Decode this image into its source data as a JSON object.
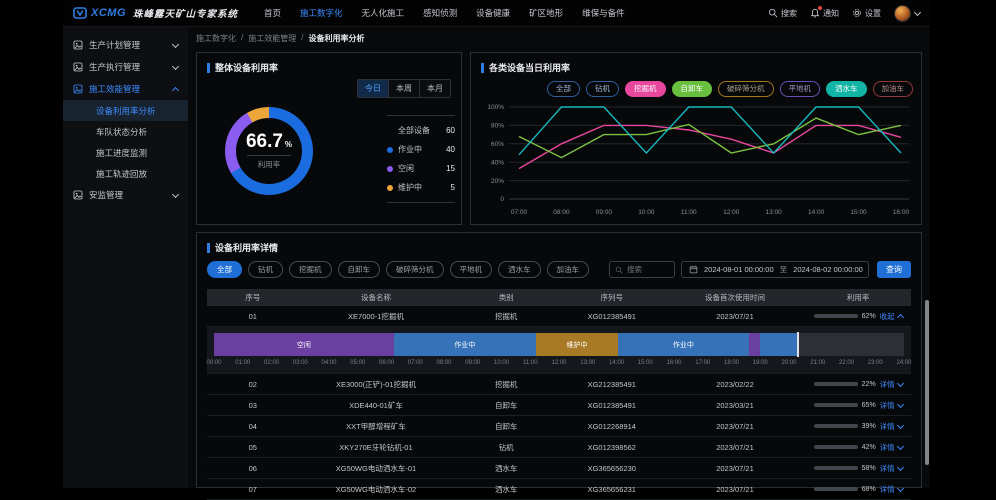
{
  "navbar": {
    "brand": "XCMG",
    "title": "珠峰露天矿山专家系统",
    "menu": [
      {
        "label": "首页",
        "active": false
      },
      {
        "label": "施工数字化",
        "active": true
      },
      {
        "label": "无人化施工",
        "active": false
      },
      {
        "label": "感知侦测",
        "active": false
      },
      {
        "label": "设备健康",
        "active": false
      },
      {
        "label": "矿区地形",
        "active": false
      },
      {
        "label": "维保与备件",
        "active": false
      }
    ],
    "actions": [
      {
        "name": "search",
        "label": "搜索",
        "badge": false
      },
      {
        "name": "notifications",
        "label": "通知",
        "badge": true
      },
      {
        "name": "settings",
        "label": "设置",
        "badge": false
      }
    ]
  },
  "sidebar": {
    "items": [
      {
        "label": "生产计划管理",
        "expanded": false,
        "active": false,
        "children": []
      },
      {
        "label": "生产执行管理",
        "expanded": false,
        "active": false,
        "children": []
      },
      {
        "label": "施工效能管理",
        "expanded": true,
        "active": true,
        "children": [
          {
            "label": "设备利用率分析",
            "active": true
          },
          {
            "label": "车队状态分析",
            "active": false
          },
          {
            "label": "施工进度监测",
            "active": false
          },
          {
            "label": "施工轨迹回放",
            "active": false
          }
        ]
      },
      {
        "label": "安监管理",
        "expanded": false,
        "active": false,
        "children": []
      }
    ]
  },
  "breadcrumb": [
    "施工数字化",
    "施工效能管理",
    "设备利用率分析"
  ],
  "overall": {
    "title": "整体设备利用率",
    "tabs": [
      {
        "label": "今日",
        "active": true
      },
      {
        "label": "本周",
        "active": false
      },
      {
        "label": "本月",
        "active": false
      }
    ],
    "center": {
      "value": "66.7",
      "unit": "%",
      "label": "利用率"
    },
    "chart_data": {
      "type": "pie",
      "title": "整体设备利用率",
      "total_label": "全部设备",
      "total": 60,
      "slices": [
        {
          "label": "作业中",
          "value": 40,
          "color": "#1b6ce0"
        },
        {
          "label": "空闲",
          "value": 15,
          "color": "#8a5cf0"
        },
        {
          "label": "维护中",
          "value": 5,
          "color": "#eda63a"
        }
      ]
    }
  },
  "daily": {
    "title": "各类设备当日利用率",
    "tags": [
      {
        "label": "全部",
        "fill": false,
        "color": "#2f5d9e",
        "text": "#9fb6d4"
      },
      {
        "label": "钻机",
        "fill": false,
        "color": "#2f5d9e",
        "text": "#9fb6d4"
      },
      {
        "label": "挖掘机",
        "fill": true,
        "color": "#e8479e",
        "text": "#ffffff"
      },
      {
        "label": "自卸车",
        "fill": true,
        "color": "#67bf3d",
        "text": "#ffffff"
      },
      {
        "label": "破碎筛分机",
        "fill": false,
        "color": "#a5791f",
        "text": "#a9a089"
      },
      {
        "label": "平地机",
        "fill": false,
        "color": "#6b4fb8",
        "text": "#a195c4"
      },
      {
        "label": "洒水车",
        "fill": true,
        "color": "#12b5a5",
        "text": "#ffffff"
      },
      {
        "label": "加油车",
        "fill": false,
        "color": "#8f3a3a",
        "text": "#bf9090"
      }
    ],
    "chart_data": {
      "type": "line",
      "title": "各类设备当日利用率",
      "x": [
        "07:00",
        "08:00",
        "09:00",
        "10:00",
        "11:00",
        "12:00",
        "13:00",
        "14:00",
        "15:00",
        "16:00"
      ],
      "ylim": [
        0,
        100
      ],
      "yticks": [
        {
          "value": 0,
          "label": "0"
        },
        {
          "value": 20,
          "label": "20%"
        },
        {
          "value": 40,
          "label": "40%"
        },
        {
          "value": 60,
          "label": "60%"
        },
        {
          "value": 80,
          "label": "80%"
        },
        {
          "value": 100,
          "label": "100%"
        }
      ],
      "grid": true,
      "legend_position": "top-right",
      "series": [
        {
          "name": "挖掘机",
          "color": "#e8479e",
          "values": [
            33,
            60,
            80,
            80,
            75,
            65,
            50,
            80,
            80,
            67
          ]
        },
        {
          "name": "自卸车",
          "color": "#7cc342",
          "values": [
            68,
            45,
            70,
            70,
            81,
            50,
            60,
            88,
            70,
            80
          ]
        },
        {
          "name": "洒水车",
          "color": "#17b8be",
          "values": [
            48,
            100,
            100,
            50,
            100,
            100,
            50,
            100,
            100,
            50
          ]
        }
      ]
    }
  },
  "details": {
    "title": "设备利用率详情",
    "filters": [
      {
        "label": "全部",
        "active": true
      },
      {
        "label": "钻机",
        "active": false
      },
      {
        "label": "挖掘机",
        "active": false
      },
      {
        "label": "自卸车",
        "active": false
      },
      {
        "label": "破碎筛分机",
        "active": false
      },
      {
        "label": "平地机",
        "active": false
      },
      {
        "label": "洒水车",
        "active": false
      },
      {
        "label": "加油车",
        "active": false
      }
    ],
    "search_placeholder": "搜索",
    "date_range": {
      "start": "2024-08-01 00:00:00",
      "separator": "至",
      "end": "2024-08-02 00:00:00"
    },
    "query_label": "查询",
    "table": {
      "columns": [
        "序号",
        "设备名称",
        "类别",
        "序列号",
        "设备首次使用时间",
        "利用率"
      ],
      "rows": [
        {
          "index": "01",
          "name": "XE7000-1挖掘机",
          "category": "挖掘机",
          "serial": "XG012385491",
          "first_use": "2023/07/21",
          "utilization": 62,
          "action": "收起",
          "expanded": true
        },
        {
          "index": "02",
          "name": "XE3000(正铲)-01挖掘机",
          "category": "挖掘机",
          "serial": "XG212385491",
          "first_use": "2023/02/22",
          "utilization": 22,
          "action": "详情",
          "expanded": false
        },
        {
          "index": "03",
          "name": "XDE440-01矿车",
          "category": "自卸车",
          "serial": "XG012385491",
          "first_use": "2023/03/21",
          "utilization": 65,
          "action": "详情",
          "expanded": false
        },
        {
          "index": "04",
          "name": "XXT甲醇增程矿车",
          "category": "自卸车",
          "serial": "XG012268914",
          "first_use": "2023/07/21",
          "utilization": 39,
          "action": "详情",
          "expanded": false
        },
        {
          "index": "05",
          "name": "XKY270E牙轮钻机-01",
          "category": "钻机",
          "serial": "XG012398562",
          "first_use": "2023/07/21",
          "utilization": 42,
          "action": "详情",
          "expanded": false
        },
        {
          "index": "06",
          "name": "XG50WG电动洒水车-01",
          "category": "洒水车",
          "serial": "XG365656230",
          "first_use": "2023/07/21",
          "utilization": 58,
          "action": "详情",
          "expanded": false
        },
        {
          "index": "07",
          "name": "XG50WG电动洒水车-02",
          "category": "洒水车",
          "serial": "XG365656231",
          "first_use": "2023/07/21",
          "utilization": 68,
          "action": "详情",
          "expanded": false
        }
      ]
    },
    "gantt": {
      "total_hours": 24,
      "cursor_hour": 20.3,
      "hours": [
        "00:00",
        "01:00",
        "02:00",
        "03:00",
        "04:00",
        "05:00",
        "06:00",
        "07:00",
        "08:00",
        "09:00",
        "10:00",
        "11:00",
        "12:00",
        "13:00",
        "14:00",
        "15:00",
        "16:00",
        "17:00",
        "18:00",
        "19:00",
        "20:00",
        "21:00",
        "22:00",
        "23:00",
        "24:00"
      ],
      "segments": [
        {
          "label": "空闲",
          "start": 0,
          "end": 6.25,
          "color": "#6b3fa0"
        },
        {
          "label": "作业中",
          "start": 6.25,
          "end": 11.2,
          "color": "#3572b8"
        },
        {
          "label": "维护中",
          "start": 11.2,
          "end": 14.05,
          "color": "#a87a25"
        },
        {
          "label": "作业中",
          "start": 14.05,
          "end": 18.6,
          "color": "#3572b8"
        },
        {
          "label": "",
          "start": 18.6,
          "end": 19.0,
          "color": "#6b3fa0"
        },
        {
          "label": "",
          "start": 19.0,
          "end": 20.3,
          "color": "#3572b8"
        }
      ]
    }
  },
  "colors": {
    "accent": "#1f6fd6",
    "active_text": "#3d8bff",
    "panel_border": "#2b2e34",
    "notification": "#e5483d"
  }
}
